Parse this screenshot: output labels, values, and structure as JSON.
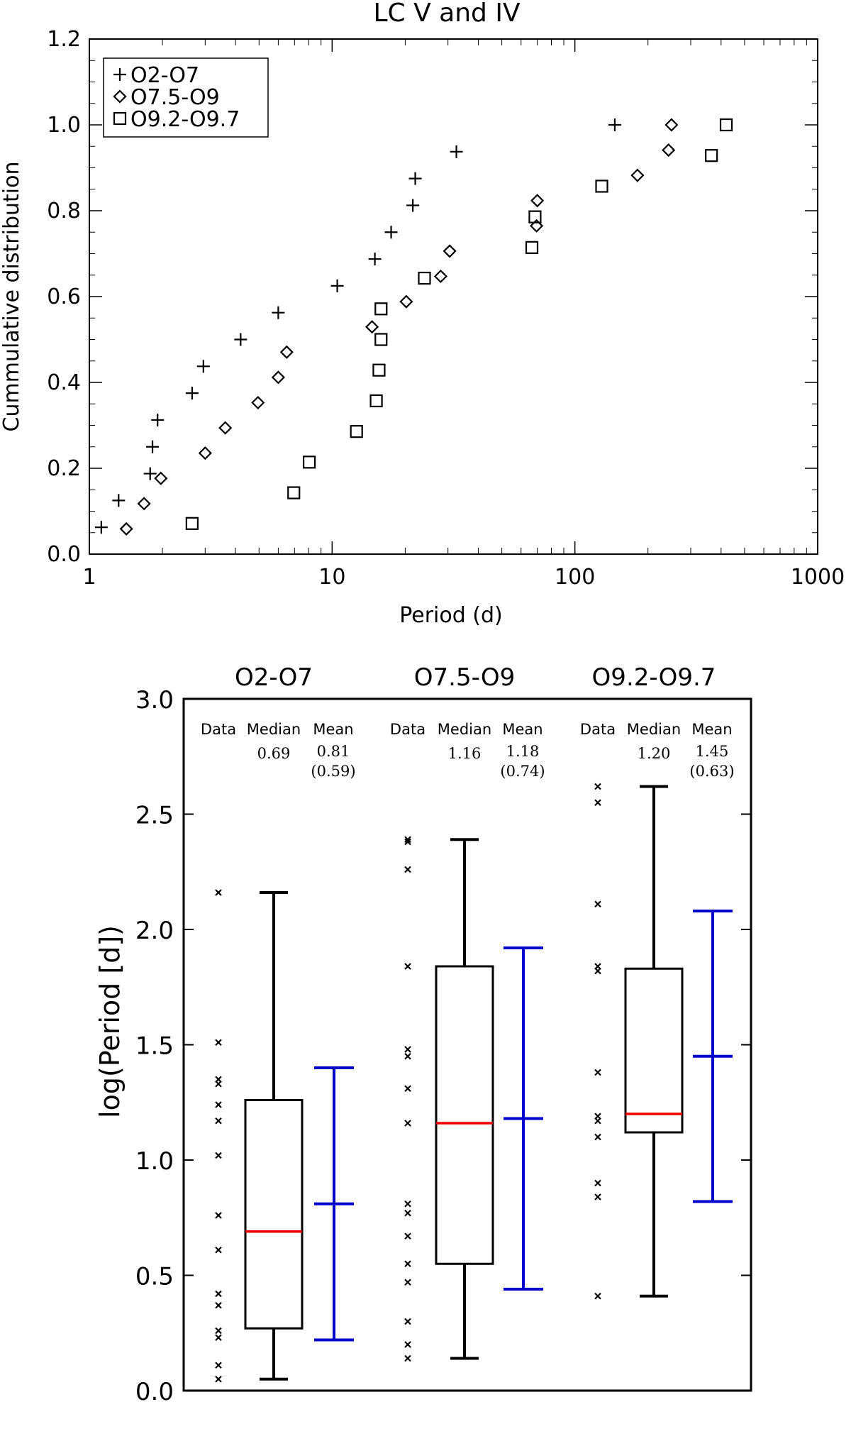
{
  "chart_data": [
    {
      "type": "scatter",
      "title": "LC V and IV",
      "xlabel": "Period (d)",
      "ylabel": "Cummulative distribution",
      "xscale": "log",
      "xlim": [
        1,
        1000
      ],
      "ylim": [
        0,
        1.2
      ],
      "xticks": [
        1,
        10,
        100,
        1000
      ],
      "xtick_labels": [
        "1",
        "10",
        "100",
        "1000"
      ],
      "yticks": [
        0,
        0.2,
        0.4,
        0.6,
        0.8,
        1.0,
        1.2
      ],
      "ytick_labels": [
        "0.0",
        "0.2",
        "0.4",
        "0.6",
        "0.8",
        "1.0",
        "1.2"
      ],
      "grid": false,
      "legend_position": "top-left",
      "series": [
        {
          "name": "O2-O7",
          "marker": "plus",
          "points": [
            [
              1.12,
              0.0625
            ],
            [
              1.32,
              0.125
            ],
            [
              1.78,
              0.1875
            ],
            [
              1.82,
              0.25
            ],
            [
              1.91,
              0.3125
            ],
            [
              2.65,
              0.375
            ],
            [
              2.95,
              0.4375
            ],
            [
              4.2,
              0.5
            ],
            [
              6.0,
              0.5625
            ],
            [
              10.5,
              0.625
            ],
            [
              15.0,
              0.6875
            ],
            [
              17.5,
              0.75
            ],
            [
              21.5,
              0.8125
            ],
            [
              22.0,
              0.875
            ],
            [
              32.5,
              0.9375
            ],
            [
              146,
              1.0
            ]
          ]
        },
        {
          "name": "O7.5-O9",
          "marker": "diamond",
          "points": [
            [
              1.42,
              0.0588
            ],
            [
              1.68,
              0.1176
            ],
            [
              1.97,
              0.1765
            ],
            [
              3.0,
              0.2353
            ],
            [
              3.63,
              0.2941
            ],
            [
              4.95,
              0.3529
            ],
            [
              6.0,
              0.4118
            ],
            [
              6.5,
              0.4706
            ],
            [
              14.6,
              0.5294
            ],
            [
              20.2,
              0.5882
            ],
            [
              28.0,
              0.6471
            ],
            [
              30.5,
              0.7059
            ],
            [
              69.5,
              0.7647
            ],
            [
              70.0,
              0.8235
            ],
            [
              181,
              0.8824
            ],
            [
              243,
              0.9412
            ],
            [
              250,
              1.0
            ]
          ]
        },
        {
          "name": "O9.2-O9.7",
          "marker": "square",
          "points": [
            [
              2.65,
              0.0714
            ],
            [
              6.95,
              0.1429
            ],
            [
              8.05,
              0.2143
            ],
            [
              12.6,
              0.2857
            ],
            [
              15.2,
              0.3571
            ],
            [
              15.6,
              0.4286
            ],
            [
              15.9,
              0.5
            ],
            [
              15.9,
              0.5714
            ],
            [
              24.0,
              0.6429
            ],
            [
              66.5,
              0.7143
            ],
            [
              68.5,
              0.7857
            ],
            [
              129,
              0.8571
            ],
            [
              365,
              0.9286
            ],
            [
              420,
              1.0
            ]
          ]
        }
      ]
    },
    {
      "type": "box",
      "ylabel": "log(Period [d])",
      "ylim": [
        0,
        3.0
      ],
      "yticks": [
        0,
        0.5,
        1.0,
        1.5,
        2.0,
        2.5,
        3.0
      ],
      "ytick_labels": [
        "0.0",
        "0.5",
        "1.0",
        "1.5",
        "2.0",
        "2.5",
        "3.0"
      ],
      "column_labels": {
        "data": "Data",
        "median": "Median",
        "mean": "Mean"
      },
      "colors": {
        "box": "#000000",
        "median": "#ee0000",
        "mean": "#0000cc"
      },
      "groups": [
        {
          "name": "O2-O7",
          "median_label": "0.69",
          "mean_label": "0.81",
          "std_label": "(0.59)",
          "whisker_low": 0.05,
          "q1": 0.27,
          "median": 0.69,
          "q3": 1.26,
          "whisker_high": 2.16,
          "mean": 0.81,
          "std": 0.59,
          "data": [
            0.05,
            0.11,
            0.23,
            0.26,
            0.37,
            0.42,
            0.61,
            0.76,
            1.02,
            1.17,
            1.24,
            1.33,
            1.35,
            1.51,
            2.16
          ]
        },
        {
          "name": "O7.5-O9",
          "median_label": "1.16",
          "mean_label": "1.18",
          "std_label": "(0.74)",
          "whisker_low": 0.14,
          "q1": 0.55,
          "median": 1.16,
          "q3": 1.84,
          "whisker_high": 2.39,
          "mean": 1.18,
          "std": 0.74,
          "data": [
            0.14,
            0.2,
            0.3,
            0.47,
            0.55,
            0.67,
            0.77,
            0.81,
            1.16,
            1.31,
            1.45,
            1.48,
            1.84,
            2.26,
            2.38,
            2.39
          ]
        },
        {
          "name": "O9.2-O9.7",
          "median_label": "1.20",
          "mean_label": "1.45",
          "std_label": "(0.63)",
          "whisker_low": 0.41,
          "q1": 1.12,
          "median": 1.2,
          "q3": 1.83,
          "whisker_high": 2.62,
          "mean": 1.45,
          "std": 0.63,
          "data": [
            0.41,
            0.84,
            0.9,
            1.1,
            1.17,
            1.19,
            1.38,
            1.82,
            1.84,
            2.11,
            2.55,
            2.62
          ]
        }
      ]
    }
  ]
}
